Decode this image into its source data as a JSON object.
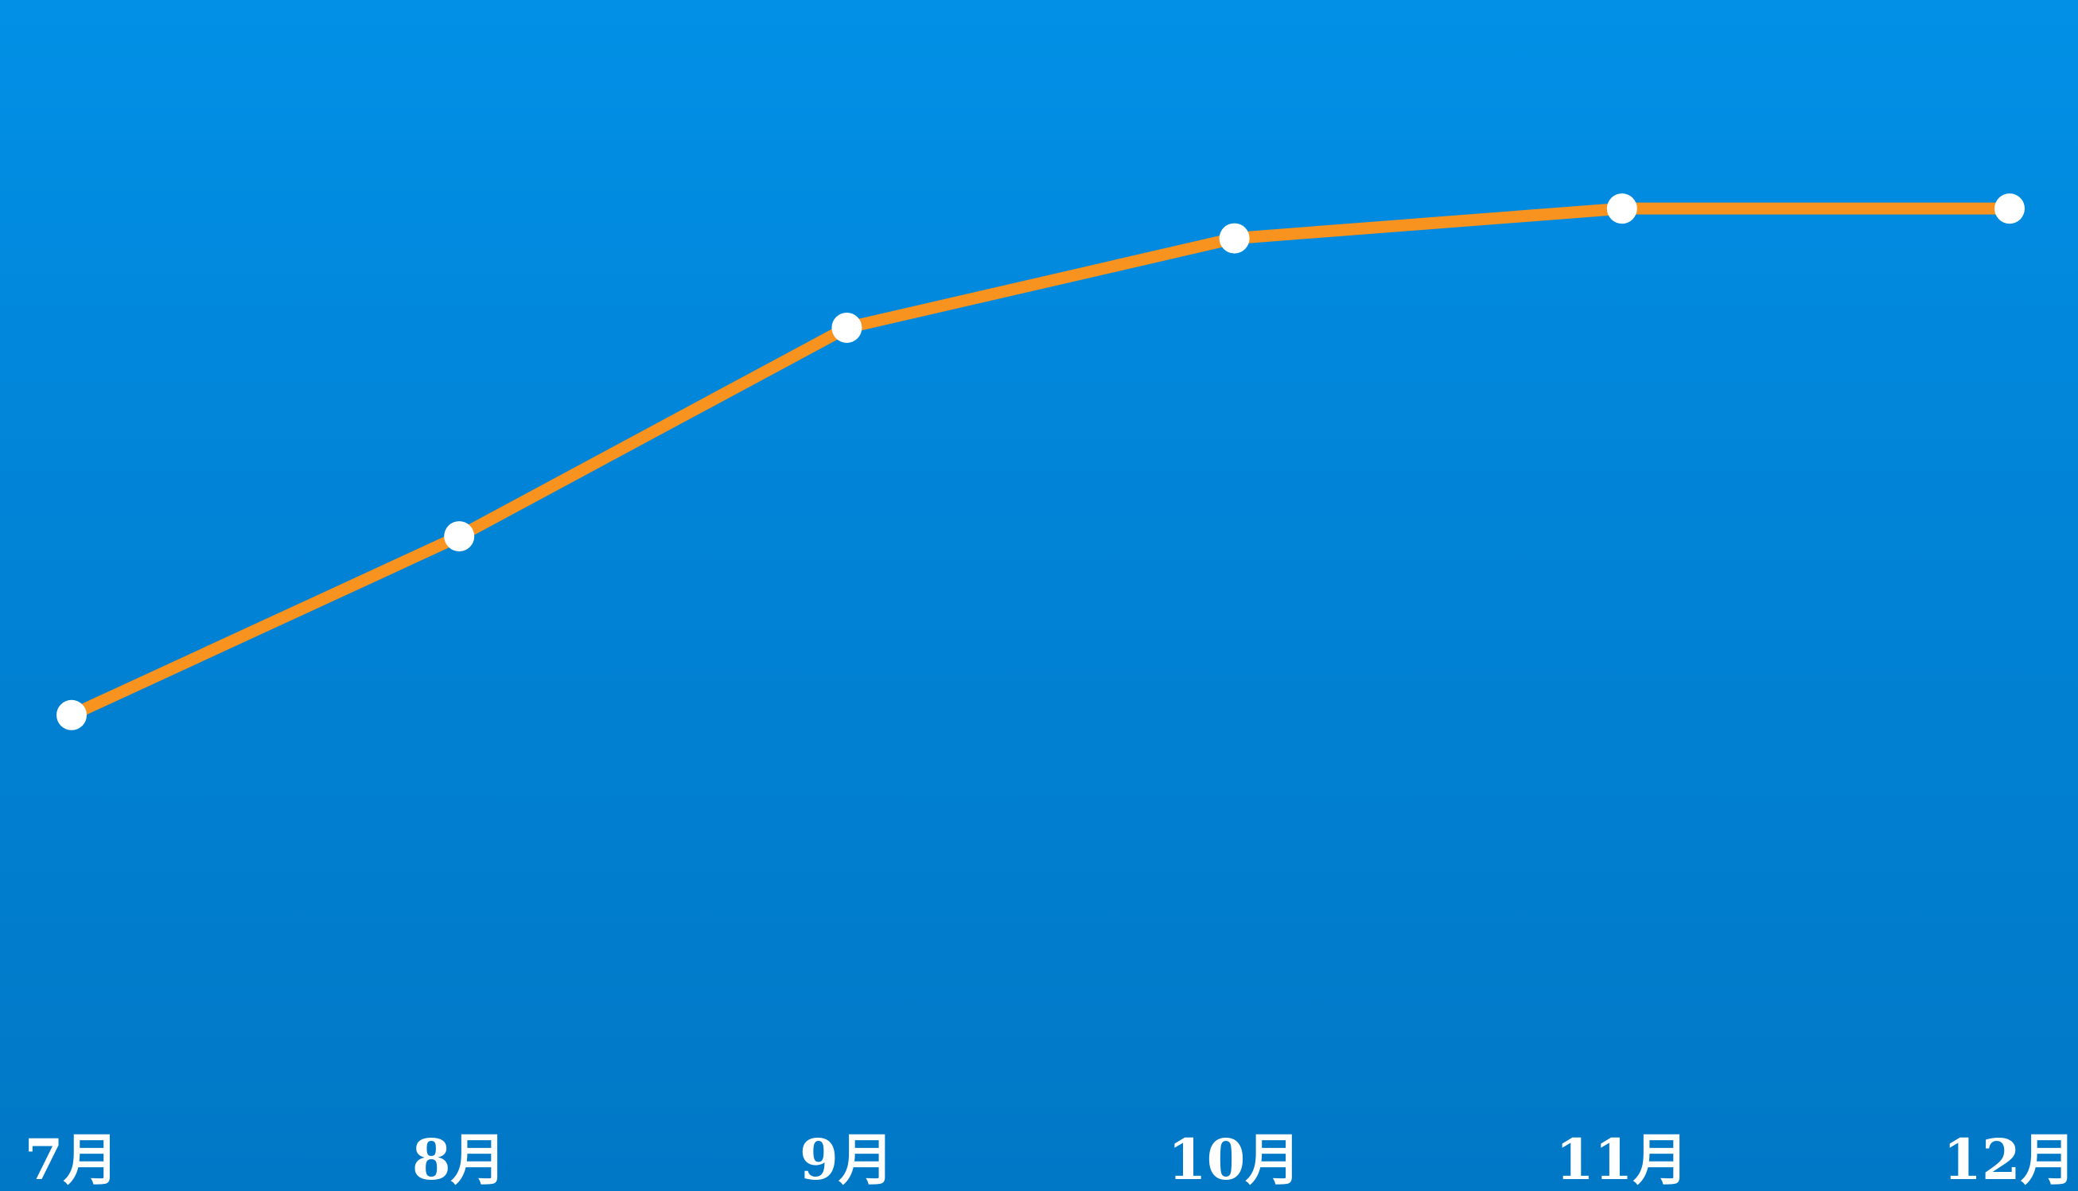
{
  "chart_data": {
    "type": "line",
    "categories": [
      "7月",
      "8月",
      "9月",
      "10月",
      "11月",
      "12月"
    ],
    "series": [
      {
        "values": [
          40,
          55,
          72.5,
          80,
          82.5,
          82.5
        ]
      }
    ],
    "ylim": [
      0,
      100
    ],
    "grid": false,
    "legend": "none",
    "colors": {
      "line": "#f7931e",
      "marker": "#ffffff",
      "tick_label": "#ffffff",
      "background_top": "#0190e6",
      "background_bottom": "#0178c6"
    }
  }
}
